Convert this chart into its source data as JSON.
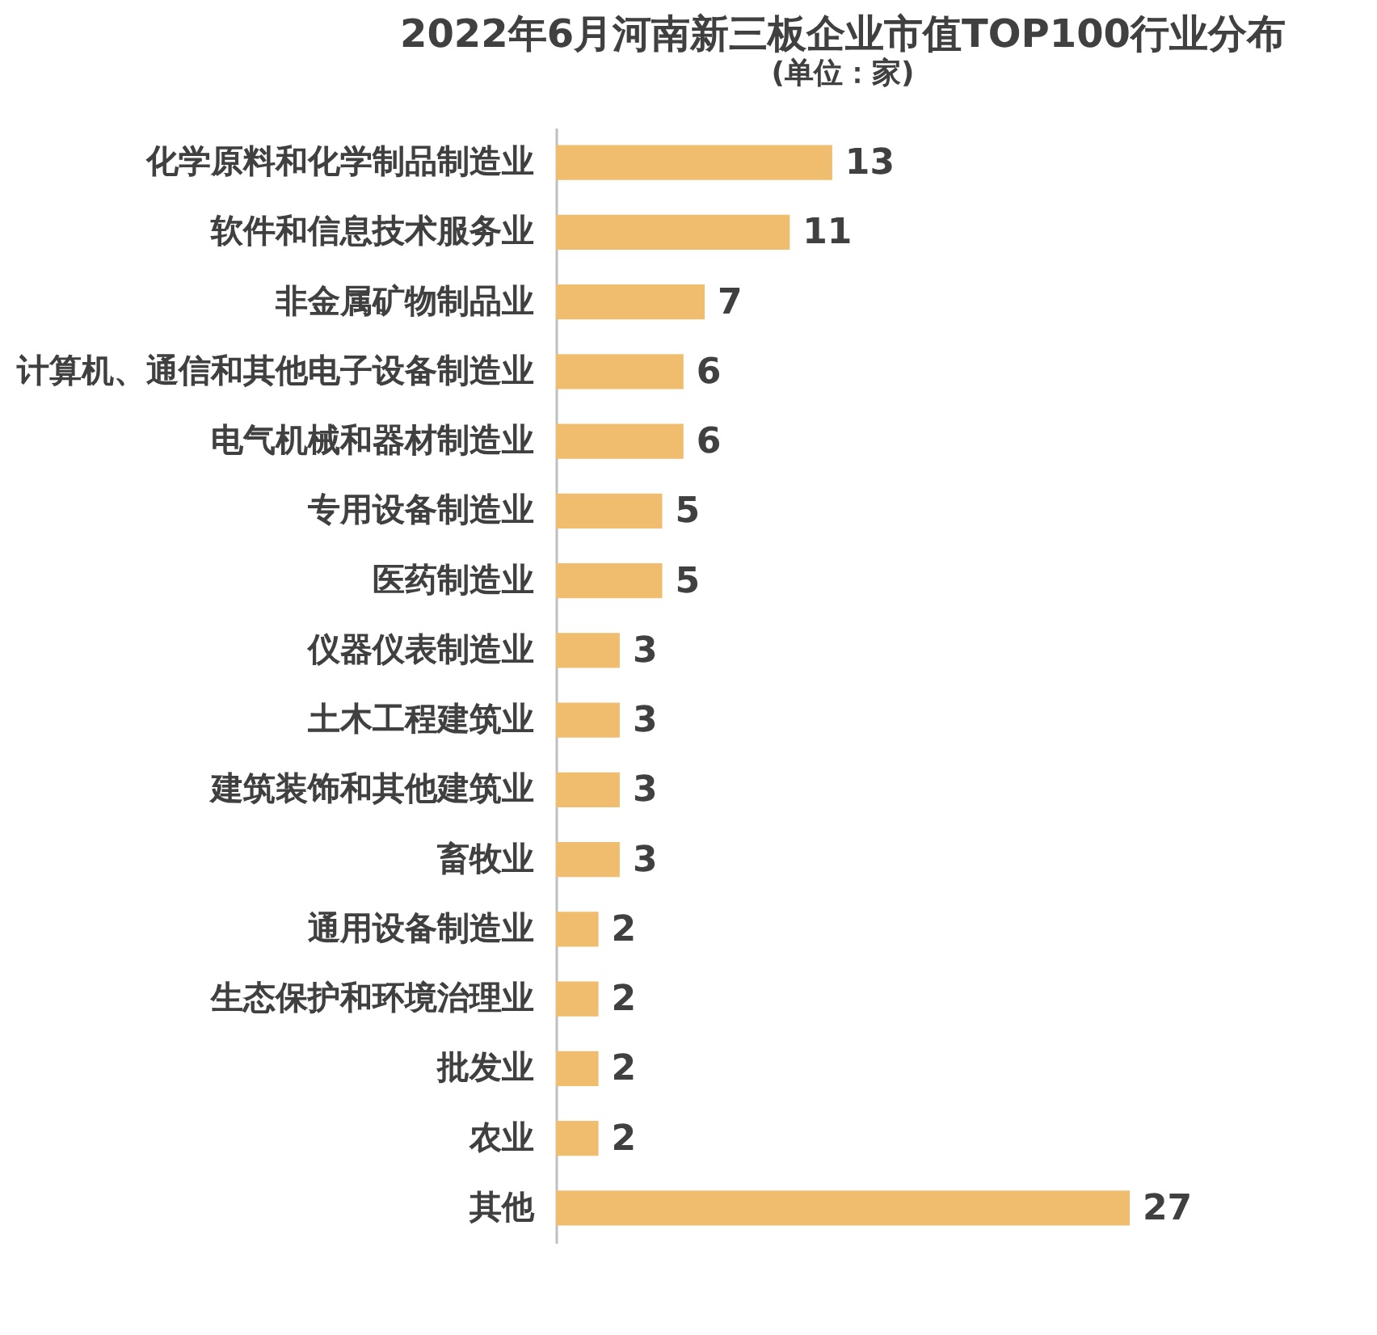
{
  "chart_data": {
    "type": "bar",
    "orientation": "horizontal",
    "title": "2022年6月河南新三板企业市值TOP100行业分布",
    "subtitle": "(单位：家)",
    "categories": [
      "化学原料和化学制品制造业",
      "软件和信息技术服务业",
      "非金属矿物制品业",
      "计算机、通信和其他电子设备制造业",
      "电气机械和器材制造业",
      "专用设备制造业",
      "医药制造业",
      "仪器仪表制造业",
      "土木工程建筑业",
      "建筑装饰和其他建筑业",
      "畜牧业",
      "通用设备制造业",
      "生态保护和环境治理业",
      "批发业",
      "农业",
      "其他"
    ],
    "values": [
      13,
      11,
      7,
      6,
      6,
      5,
      5,
      3,
      3,
      3,
      3,
      2,
      2,
      2,
      2,
      27
    ],
    "color": "#f0bd6e",
    "data_labels": true
  }
}
